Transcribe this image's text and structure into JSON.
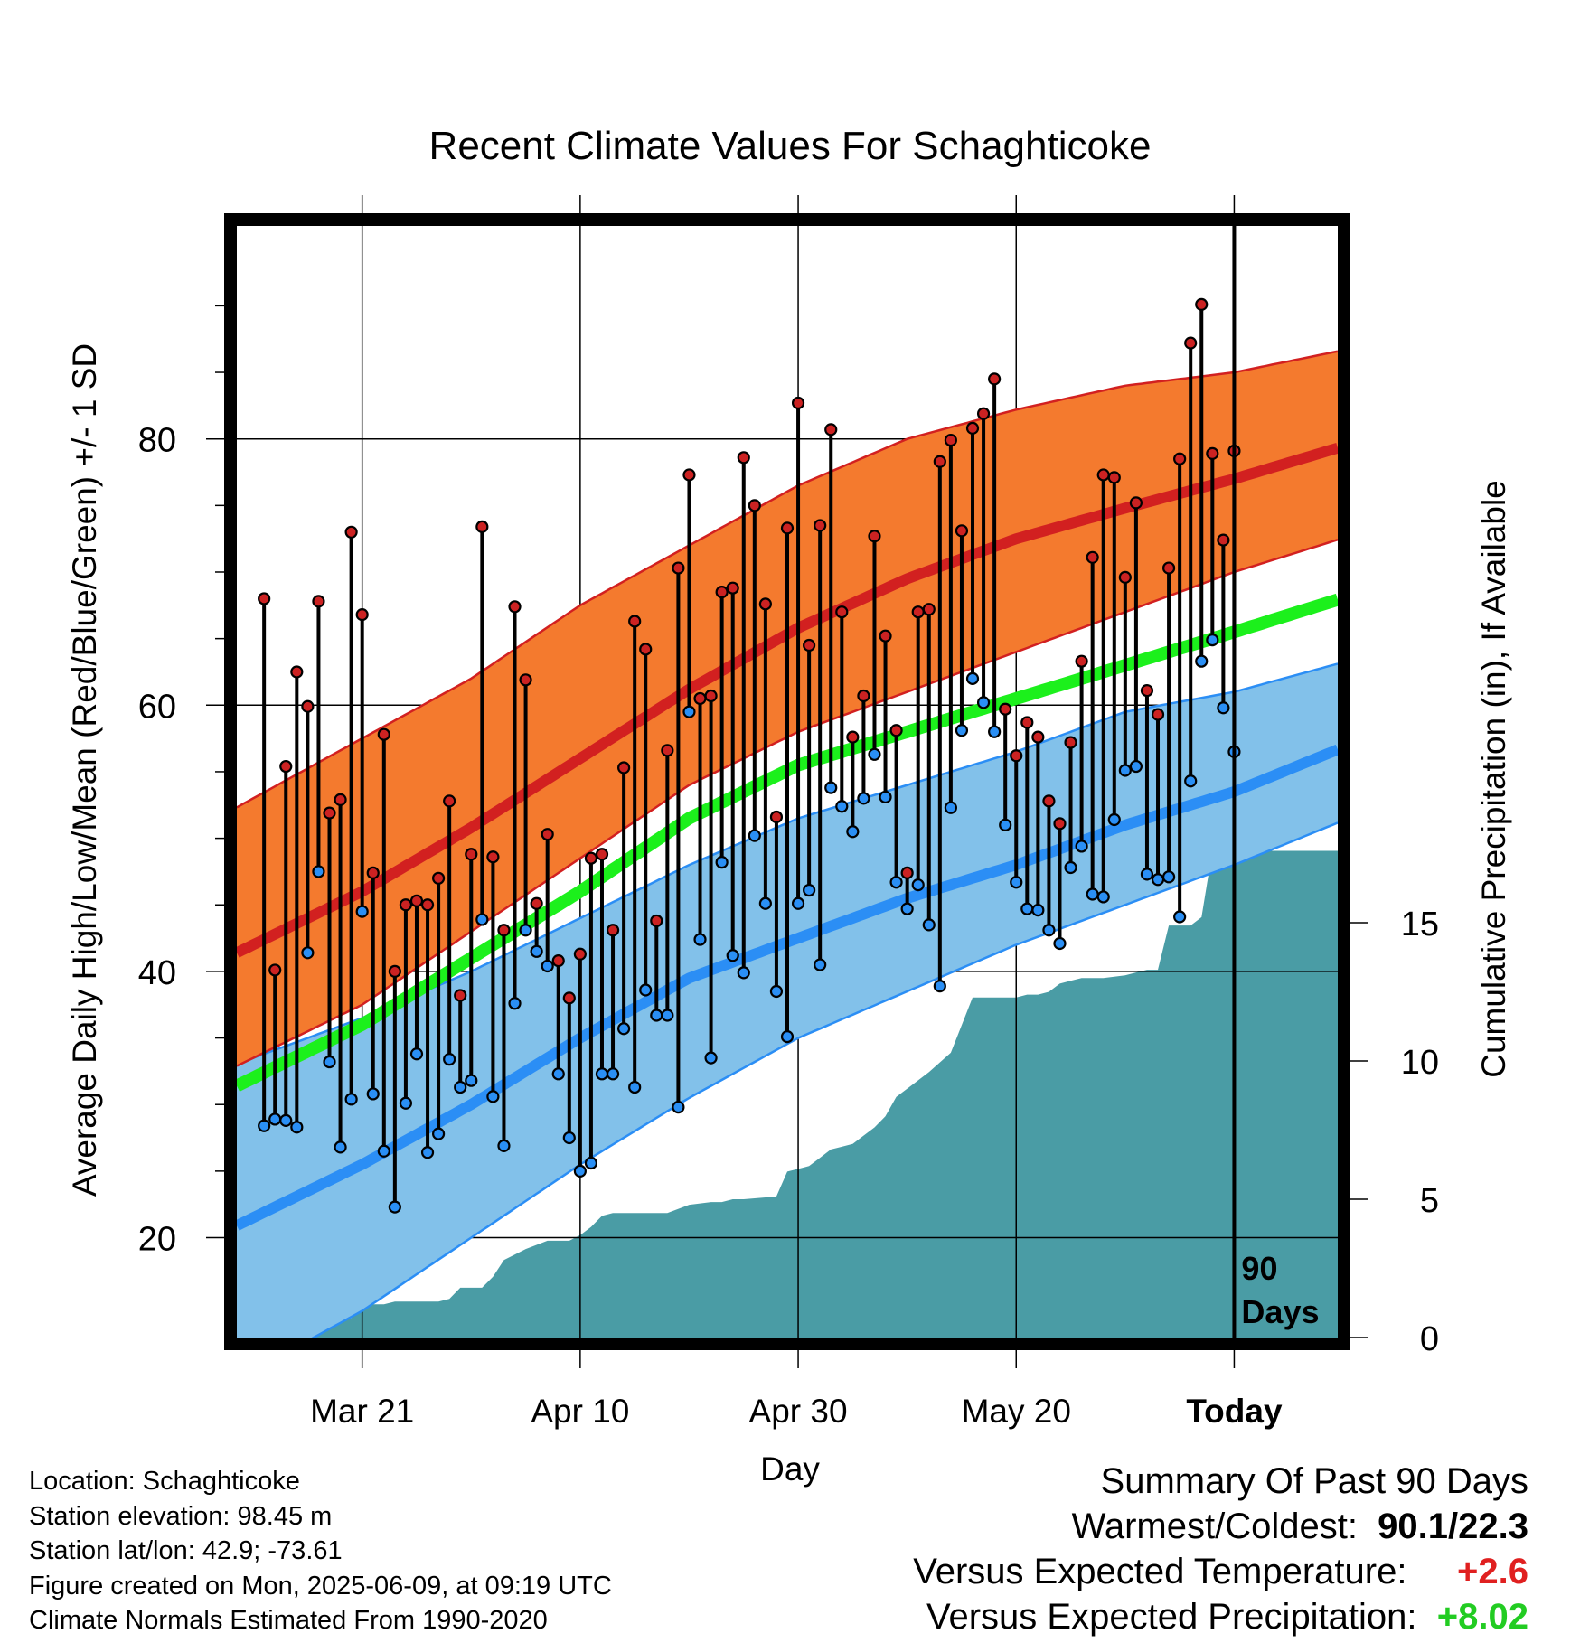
{
  "chart_data": {
    "type": "line",
    "title": "Recent Climate Values For Schaghticoke",
    "xlabel": "Day",
    "ylabel": "Average Daily High/Low/Mean (Red/Blue/Green) +/- 1 SD",
    "y2label": "Cumulative Precipitation (in), If Available",
    "xticks": [
      "Mar 21",
      "Apr 10",
      "Apr 30",
      "May 20",
      "Today"
    ],
    "xtick_days": [
      -80,
      -60,
      -40,
      -20,
      0
    ],
    "xlim_days": [
      -91.5,
      9.5
    ],
    "ylim": [
      12.5,
      96
    ],
    "yticks": [
      20,
      40,
      60,
      80
    ],
    "y2lim": [
      0,
      40.2
    ],
    "y2ticks": [
      0,
      5,
      10,
      15
    ],
    "grid": true,
    "today_marker": {
      "day": 0,
      "label_line1": "90",
      "label_line2": "Days"
    },
    "normals": {
      "days": [
        -90,
        -80,
        -70,
        -60,
        -50,
        -40,
        -30,
        -20,
        -10,
        0,
        9
      ],
      "high_mean": [
        42.0,
        46.0,
        50.8,
        56.0,
        61.2,
        65.8,
        69.5,
        72.5,
        74.8,
        77.0,
        79.2
      ],
      "high_upper": [
        53.0,
        57.5,
        62.0,
        67.5,
        72.0,
        76.5,
        80.0,
        82.2,
        84.0,
        85.0,
        86.5
      ],
      "high_lower": [
        33.5,
        37.5,
        43.0,
        48.5,
        54.0,
        58.0,
        61.0,
        64.0,
        67.0,
        70.0,
        72.3
      ],
      "mean": [
        32.0,
        36.0,
        41.0,
        46.0,
        51.5,
        55.5,
        58.0,
        60.5,
        63.0,
        65.5,
        67.8
      ],
      "low_mean": [
        21.5,
        25.5,
        30.0,
        35.0,
        39.5,
        42.5,
        45.5,
        48.0,
        51.0,
        53.5,
        56.5
      ],
      "low_upper": [
        33.5,
        36.5,
        40.0,
        44.0,
        48.0,
        51.5,
        54.0,
        56.5,
        59.5,
        61.0,
        63.0
      ],
      "low_lower": [
        10.0,
        14.5,
        20.0,
        25.5,
        30.5,
        35.0,
        38.5,
        42.0,
        45.0,
        48.0,
        51.0
      ]
    },
    "series": [
      {
        "name": "High",
        "color": "#cc2222",
        "values": [
          68.0,
          40.1,
          55.4,
          62.5,
          59.9,
          67.8,
          51.9,
          52.9,
          73.0,
          66.8,
          47.4,
          57.8,
          40.0,
          45.0,
          45.3,
          45.0,
          47.0,
          52.8,
          38.2,
          48.8,
          73.4,
          48.6,
          43.1,
          67.4,
          61.9,
          45.1,
          50.3,
          40.8,
          38.0,
          41.3,
          48.5,
          48.8,
          43.1,
          55.3,
          66.3,
          64.2,
          43.8,
          56.6,
          70.3,
          77.3,
          60.5,
          60.7,
          68.5,
          68.8,
          78.6,
          75.0,
          67.6,
          51.6,
          73.3,
          82.7,
          64.5,
          73.5,
          80.7,
          67.0,
          57.6,
          60.7,
          72.7,
          65.2,
          58.1,
          47.4,
          67.0,
          67.2,
          78.3,
          79.9,
          73.1,
          80.8,
          81.9,
          84.5,
          59.7,
          56.2,
          58.7,
          57.6,
          52.8,
          51.1,
          57.2,
          63.3,
          71.1,
          77.3,
          77.1,
          69.6,
          75.2,
          61.1,
          59.3,
          70.3,
          78.5,
          87.2,
          90.1,
          78.9,
          72.4,
          79.1
        ]
      },
      {
        "name": "Low",
        "color": "#2a8ff5",
        "values": [
          28.4,
          28.9,
          28.8,
          28.3,
          41.4,
          47.5,
          33.2,
          26.8,
          30.4,
          44.5,
          30.8,
          26.5,
          22.3,
          30.1,
          33.8,
          26.4,
          27.8,
          33.4,
          31.3,
          31.8,
          43.9,
          30.6,
          26.9,
          37.6,
          43.1,
          41.5,
          40.4,
          32.3,
          27.5,
          25.0,
          25.6,
          32.3,
          32.3,
          35.7,
          31.3,
          38.6,
          36.7,
          36.7,
          29.8,
          59.5,
          42.4,
          33.5,
          48.2,
          41.2,
          39.9,
          50.2,
          45.1,
          38.5,
          35.1,
          45.1,
          46.1,
          40.5,
          53.8,
          52.4,
          50.5,
          53.0,
          56.3,
          53.1,
          46.7,
          44.7,
          46.5,
          43.5,
          38.9,
          52.3,
          58.1,
          62.0,
          60.2,
          58.0,
          51.0,
          46.7,
          44.7,
          44.6,
          43.1,
          42.1,
          47.8,
          49.4,
          45.8,
          45.6,
          51.4,
          55.1,
          55.4,
          47.3,
          46.9,
          47.1,
          44.1,
          54.3,
          63.3,
          64.9,
          59.8,
          56.5
        ]
      }
    ],
    "precip_cumulative": {
      "days": [
        -91.5,
        -89,
        -87,
        -85,
        -83,
        -81,
        -80,
        -79,
        -78,
        -77,
        -76,
        -73,
        -72,
        -71,
        -69,
        -68,
        -67,
        -66,
        -65,
        -63,
        -61,
        -60,
        -59,
        -58,
        -57,
        -55,
        -53,
        -52,
        -50,
        -48,
        -47,
        -46,
        -45,
        -42,
        -41,
        -40,
        -39,
        -38,
        -37,
        -36,
        -35,
        -34,
        -33,
        -32,
        -31,
        -30,
        -28,
        -26,
        -25,
        -24,
        -22,
        -20,
        -19,
        -18,
        -17,
        -16,
        -15,
        -14,
        -12,
        -10,
        -9,
        -8,
        -7,
        -6,
        -5,
        -4,
        -3,
        -2,
        9.5
      ],
      "values": [
        0,
        0.1,
        0.2,
        0.3,
        0.4,
        0.7,
        1.1,
        1.2,
        1.2,
        1.3,
        1.3,
        1.3,
        1.4,
        1.8,
        1.8,
        2.2,
        2.8,
        3.0,
        3.2,
        3.5,
        3.5,
        3.7,
        4.0,
        4.4,
        4.5,
        4.5,
        4.5,
        4.5,
        4.8,
        4.9,
        4.9,
        5.0,
        5.0,
        5.1,
        6.0,
        6.1,
        6.2,
        6.5,
        6.8,
        6.9,
        7.0,
        7.3,
        7.6,
        8.0,
        8.7,
        9.0,
        9.6,
        10.3,
        11.3,
        12.3,
        12.3,
        12.3,
        12.4,
        12.4,
        12.5,
        12.8,
        12.9,
        13.0,
        13.0,
        13.1,
        13.2,
        13.3,
        13.3,
        14.9,
        14.9,
        14.9,
        15.2,
        17.6,
        17.6
      ]
    }
  },
  "info": {
    "location": "Location: Schaghticoke",
    "elevation": "Station elevation: 98.45 m",
    "latlon": "Station lat/lon: 42.9; -73.61",
    "created": "Figure created on Mon, 2025-06-09, at 09:19 UTC",
    "normals": "Climate Normals Estimated From 1990-2020"
  },
  "summary": {
    "title": "Summary Of Past 90 Days",
    "warmest_label": "Warmest/Coldest:",
    "warmest_value": "90.1/22.3",
    "temp_label": "Versus Expected Temperature:",
    "temp_value": "+2.6",
    "temp_color": "#e02020",
    "precip_label": "Versus Expected Precipitation:",
    "precip_value": "+8.02",
    "precip_color": "#22cc22"
  },
  "colors": {
    "high_band": "#f47a2e",
    "high_line": "#d22020",
    "high_edge": "#d22020",
    "mean_line": "#1cf01c",
    "low_band": "#82c1ea",
    "low_line": "#2b8ef5",
    "low_edge": "#2b8ef5",
    "precip_fill": "#4a9ca5",
    "high_marker": "#cc2222",
    "low_marker": "#2a8ff5"
  }
}
